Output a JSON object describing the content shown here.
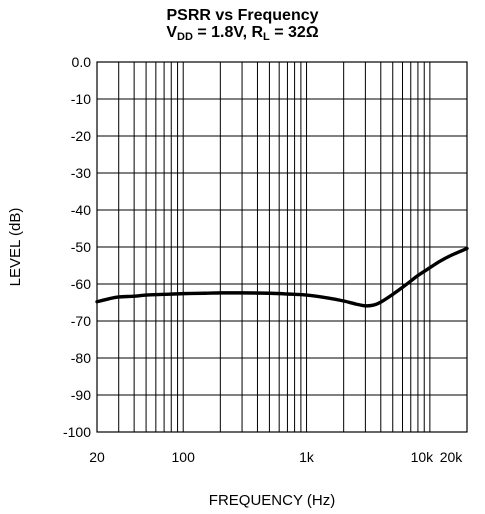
{
  "chart_data": {
    "type": "line",
    "title_line1": "PSRR vs Frequency",
    "title_line2": {
      "v_prefix": "V",
      "v_sub": "DD",
      "v_rest": " = 1.8V, R",
      "r_sub": "L",
      "r_rest": " = 32Ω"
    },
    "xlabel": "FREQUENCY (Hz)",
    "ylabel": "LEVEL (dB)",
    "x_scale": "log",
    "xlim": [
      20,
      20000
    ],
    "ylim": [
      -100,
      0
    ],
    "grid": true,
    "x_ticks": [
      {
        "value": 20,
        "label": "20"
      },
      {
        "value": 100,
        "label": "100"
      },
      {
        "value": 1000,
        "label": "1k"
      },
      {
        "value": 10000,
        "label": "10k"
      },
      {
        "value": 20000,
        "label": "20k"
      }
    ],
    "y_ticks": [
      {
        "value": 0,
        "label": "0.0"
      },
      {
        "value": -10,
        "label": "-10"
      },
      {
        "value": -20,
        "label": "-20"
      },
      {
        "value": -30,
        "label": "-30"
      },
      {
        "value": -40,
        "label": "-40"
      },
      {
        "value": -50,
        "label": "-50"
      },
      {
        "value": -60,
        "label": "-60"
      },
      {
        "value": -70,
        "label": "-70"
      },
      {
        "value": -80,
        "label": "-80"
      },
      {
        "value": -90,
        "label": "-90"
      },
      {
        "value": -100,
        "label": "-100"
      }
    ],
    "series": [
      {
        "x": [
          20,
          25,
          30,
          40,
          50,
          70,
          100,
          150,
          200,
          300,
          500,
          700,
          1000,
          1500,
          2000,
          2500,
          3000,
          3500,
          4000,
          5000,
          6000,
          7000,
          8000,
          10000,
          12000,
          15000,
          20000
        ],
        "y": [
          -64.8,
          -64.0,
          -63.5,
          -63.3,
          -63.0,
          -62.8,
          -62.6,
          -62.5,
          -62.4,
          -62.4,
          -62.5,
          -62.7,
          -63.0,
          -63.8,
          -64.6,
          -65.4,
          -65.9,
          -65.7,
          -64.9,
          -62.8,
          -60.9,
          -59.2,
          -57.7,
          -55.6,
          -53.9,
          -52.2,
          -50.4
        ]
      }
    ],
    "colors": {
      "line": "#000000",
      "grid": "#000000"
    }
  }
}
